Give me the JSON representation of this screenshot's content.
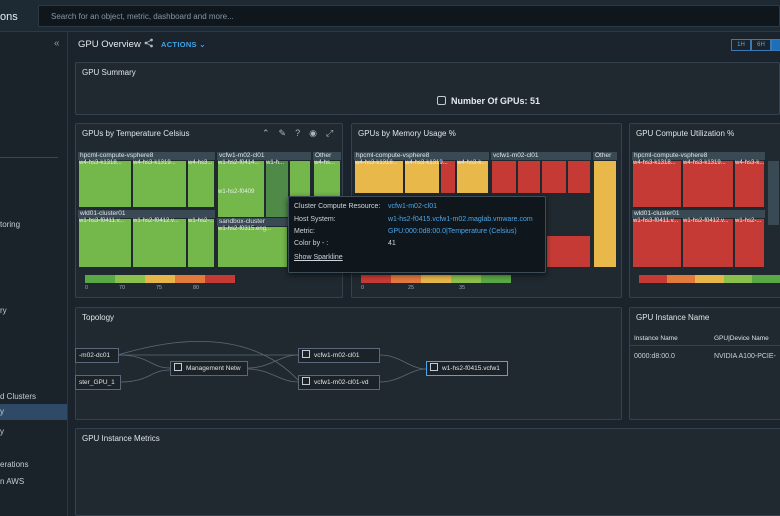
{
  "app": {
    "title": "ons"
  },
  "search": {
    "placeholder": "Search for an object, metric, dashboard and more..."
  },
  "nav": {
    "collapse": "«",
    "items": [
      "toring",
      "ry",
      "d Clusters",
      "y",
      "y",
      "erations",
      "n AWS"
    ]
  },
  "header": {
    "title": "GPU Overview",
    "actions": "ACTIONS",
    "times": [
      "1H",
      "6H",
      ""
    ]
  },
  "summary": {
    "title": "GPU Summary",
    "count_label": "Number Of GPUs: 51"
  },
  "temp_panel": {
    "title": "GPUs by Temperature Celsius",
    "groups": [
      "hpcml-compute-vsphere8",
      "vcfw1-m02-cl01",
      "Other",
      "wld01-cluster01",
      "sandbox-cluster"
    ],
    "labels": [
      "w4-hs3-k1318...",
      "w4-hs3-k1319...",
      "w4-hs3...",
      "w1-hs2-f0414...",
      "w1-h...",
      "w4-hs...",
      "w1-hs2-f0409",
      "w1-hs3-f0411.v...",
      "w1-hs2-f0412.v...",
      "w1-hs2-...",
      "w1-hs2-f0315.eng..."
    ],
    "ticks": [
      "0",
      "70",
      "75",
      "80"
    ]
  },
  "mem_panel": {
    "title": "GPUs by Memory Usage %",
    "groups": [
      "hpcml-compute-vsphere8",
      "vcfw1-m02-cl01",
      "Other"
    ],
    "labels": [
      "w4-hs3-k1318...",
      "w4-hs3-k1319...",
      "w4-hs3-k..."
    ],
    "ticks": [
      "0",
      "25",
      "35"
    ]
  },
  "util_panel": {
    "title": "GPU Compute Utilization %",
    "groups": [
      "hpcml-compute-vsphere8",
      "wld01-cluster01"
    ],
    "labels": [
      "w4-hs3-k1318...",
      "w4-hs3-k1319...",
      "w4-hs3-k...",
      "w1-hs3-f0411.v...",
      "w1-hs2-f0412.v...",
      "w1-hs2-..."
    ]
  },
  "tooltip": {
    "rows": [
      {
        "k": "Cluster Compute Resource:",
        "v": "vcfw1-m02-cl01"
      },
      {
        "k": "Host System:",
        "v": "w1-hs2-f0415.vcfw1-m02.maglab.vmware.com"
      },
      {
        "k": "Metric:",
        "v": "GPU:000:0d8:00.0|Temperature (Celsius)"
      },
      {
        "k": "Color by - :",
        "v": "41"
      }
    ],
    "link": "Show Sparkline"
  },
  "topology": {
    "title": "Topology",
    "nodes": [
      "-m02-dc01",
      "ster_GPU_1",
      "Management Netw",
      "vcfw1-m02-cl01",
      "vcfw1-m02-cl01-vd",
      "w1-hs2-f0415.vcfw1"
    ]
  },
  "instance": {
    "title": "GPU Instance Name",
    "columns": [
      "Instance Name",
      "GPU|Device Name"
    ],
    "rows": [
      [
        "0000:d8:00.0",
        "NVIDIA A100-PCIE-"
      ]
    ]
  },
  "metrics": {
    "title": "GPU Instance Metrics"
  },
  "colors": {
    "green": "#78b84b",
    "red": "#c63a35",
    "yellow": "#e8b94a",
    "accent": "#4aa6ea"
  }
}
